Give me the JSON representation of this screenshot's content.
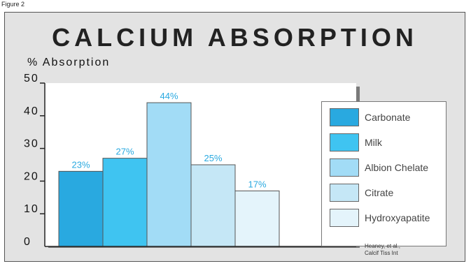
{
  "figure_label": "Figure 2",
  "source_line1": "Heaney, et al.,",
  "source_line2": "Calcif Tiss Int",
  "colors": {
    "frame_bg": "#e3e3e3",
    "plot_bg": "#ffffff",
    "label_blue": "#29a9e0",
    "axis": "#222222",
    "plot_shadow": "#7a7a7a"
  },
  "chart_data": {
    "type": "bar",
    "title": "CALCIUM ABSORPTION",
    "ylabel": "% Absorption",
    "xlabel": "",
    "ylim": [
      0,
      50
    ],
    "yticks": [
      "0",
      "10",
      "20",
      "30",
      "40",
      "50"
    ],
    "grid": false,
    "legend_position": "right",
    "categories": [
      "Carbonate",
      "Milk",
      "Albion Chelate",
      "Citrate",
      "Hydroxyapatite"
    ],
    "values": [
      23,
      27,
      44,
      25,
      17
    ],
    "value_labels": [
      "23%",
      "27%",
      "44%",
      "25%",
      "17%"
    ],
    "bar_colors": [
      "#29a9e0",
      "#3fc4f1",
      "#a2dcf6",
      "#c5e7f6",
      "#e4f4fb"
    ]
  }
}
